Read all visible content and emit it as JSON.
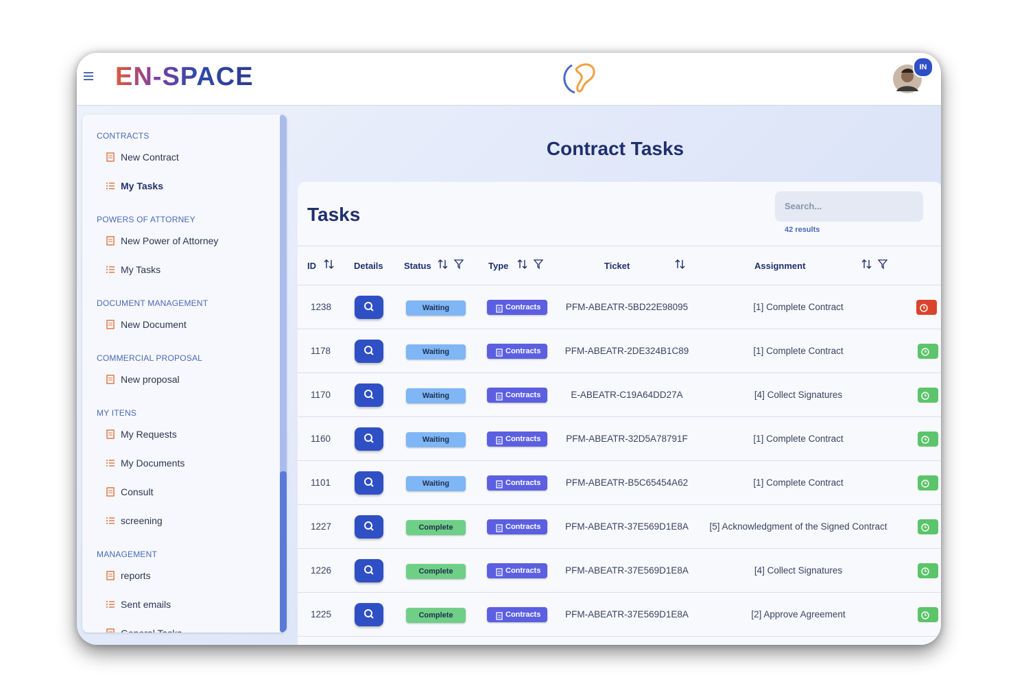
{
  "header": {
    "logo": "EN-SPACE",
    "avatar_badge": "IN"
  },
  "sidebar": {
    "sections": [
      {
        "title": "CONTRACTS",
        "items": [
          "New Contract",
          "My Tasks"
        ]
      },
      {
        "title": "POWERS OF ATTORNEY",
        "items": [
          "New Power of Attorney",
          "My Tasks"
        ]
      },
      {
        "title": "DOCUMENT MANAGEMENT",
        "items": [
          "New Document"
        ]
      },
      {
        "title": "COMMERCIAL PROPOSAL",
        "items": [
          "New proposal"
        ]
      },
      {
        "title": "MY ITENS",
        "items": [
          "My Requests",
          "My Documents",
          "Consult",
          "screening"
        ]
      },
      {
        "title": "MANAGEMENT",
        "items": [
          "reports",
          "Sent emails",
          "General Tasks"
        ]
      }
    ]
  },
  "page_title": "Contract Tasks",
  "tasks": {
    "title": "Tasks",
    "search_placeholder": "Search...",
    "results": "42 results",
    "columns": [
      "ID",
      "Details",
      "Status",
      "Type",
      "Ticket",
      "Assignment"
    ],
    "rows": [
      {
        "id": "1238",
        "status": "Waiting",
        "type": "Contracts",
        "ticket": "PFM-ABEATR-5BD22E98095",
        "assignment": "[1] Complete Contract",
        "flag_color": "#d9442e"
      },
      {
        "id": "1178",
        "status": "Waiting",
        "type": "Contracts",
        "ticket": "PFM-ABEATR-2DE324B1C89",
        "assignment": "[1] Complete Contract",
        "flag_color": "#5cc46a"
      },
      {
        "id": "1170",
        "status": "Waiting",
        "type": "Contracts",
        "ticket": "E-ABEATR-C19A64DD27A",
        "assignment": "[4] Collect Signatures",
        "flag_color": "#5cc46a"
      },
      {
        "id": "1160",
        "status": "Waiting",
        "type": "Contracts",
        "ticket": "PFM-ABEATR-32D5A78791F",
        "assignment": "[1] Complete Contract",
        "flag_color": "#5cc46a"
      },
      {
        "id": "1101",
        "status": "Waiting",
        "type": "Contracts",
        "ticket": "PFM-ABEATR-B5C65454A62",
        "assignment": "[1] Complete Contract",
        "flag_color": "#5cc46a"
      },
      {
        "id": "1227",
        "status": "Complete",
        "type": "Contracts",
        "ticket": "PFM-ABEATR-37E569D1E8A",
        "assignment": "[5] Acknowledgment of the Signed Contract",
        "flag_color": "#5cc46a"
      },
      {
        "id": "1226",
        "status": "Complete",
        "type": "Contracts",
        "ticket": "PFM-ABEATR-37E569D1E8A",
        "assignment": "[4] Collect Signatures",
        "flag_color": "#5cc46a"
      },
      {
        "id": "1225",
        "status": "Complete",
        "type": "Contracts",
        "ticket": "PFM-ABEATR-37E569D1E8A",
        "assignment": "[2] Approve Agreement",
        "flag_color": "#5cc46a"
      }
    ]
  }
}
